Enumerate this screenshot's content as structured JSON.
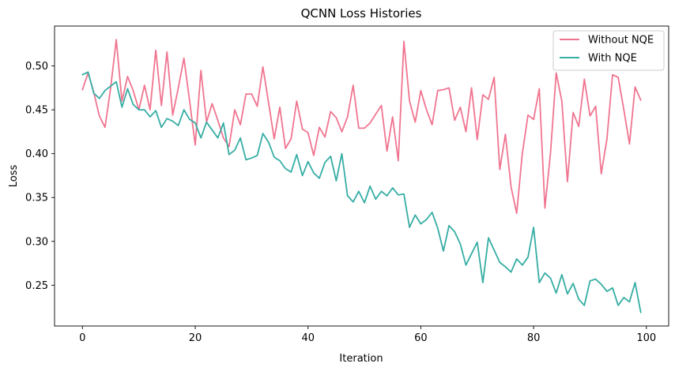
{
  "chart_data": {
    "type": "line",
    "title": "QCNN Loss Histories",
    "xlabel": "Iteration",
    "ylabel": "Loss",
    "xlim": [
      -4.95,
      103.95
    ],
    "ylim": [
      0.2035,
      0.5455
    ],
    "xticks": [
      0,
      20,
      40,
      60,
      80,
      100
    ],
    "yticks": [
      0.25,
      0.3,
      0.35,
      0.4,
      0.45,
      0.5
    ],
    "ytick_labels": [
      "0.25",
      "0.30",
      "0.35",
      "0.40",
      "0.45",
      "0.50"
    ],
    "grid": false,
    "legend_position": "top-right",
    "series": [
      {
        "name": "Without NQE",
        "color": "#f07590",
        "values": [
          0.473,
          0.492,
          0.47,
          0.443,
          0.43,
          0.475,
          0.53,
          0.46,
          0.488,
          0.472,
          0.45,
          0.478,
          0.45,
          0.518,
          0.455,
          0.516,
          0.444,
          0.475,
          0.509,
          0.46,
          0.41,
          0.495,
          0.436,
          0.457,
          0.438,
          0.418,
          0.408,
          0.45,
          0.433,
          0.468,
          0.468,
          0.454,
          0.499,
          0.458,
          0.417,
          0.453,
          0.406,
          0.417,
          0.46,
          0.428,
          0.424,
          0.398,
          0.43,
          0.419,
          0.448,
          0.441,
          0.425,
          0.442,
          0.478,
          0.429,
          0.429,
          0.435,
          0.445,
          0.455,
          0.403,
          0.442,
          0.392,
          0.528,
          0.46,
          0.436,
          0.472,
          0.45,
          0.433,
          0.472,
          0.473,
          0.475,
          0.438,
          0.453,
          0.425,
          0.475,
          0.416,
          0.467,
          0.462,
          0.487,
          0.382,
          0.422,
          0.362,
          0.332,
          0.4,
          0.444,
          0.439,
          0.474,
          0.338,
          0.401,
          0.492,
          0.46,
          0.368,
          0.447,
          0.431,
          0.485,
          0.443,
          0.454,
          0.377,
          0.417,
          0.49,
          0.487,
          0.45,
          0.411,
          0.476,
          0.461
        ]
      },
      {
        "name": "With NQE",
        "color": "#36ada4",
        "values": [
          0.49,
          0.493,
          0.469,
          0.463,
          0.472,
          0.477,
          0.482,
          0.453,
          0.474,
          0.456,
          0.45,
          0.45,
          0.442,
          0.449,
          0.43,
          0.44,
          0.437,
          0.432,
          0.45,
          0.439,
          0.435,
          0.418,
          0.436,
          0.427,
          0.418,
          0.435,
          0.399,
          0.404,
          0.418,
          0.393,
          0.395,
          0.398,
          0.423,
          0.413,
          0.396,
          0.392,
          0.383,
          0.379,
          0.399,
          0.375,
          0.391,
          0.378,
          0.372,
          0.39,
          0.397,
          0.369,
          0.4,
          0.352,
          0.345,
          0.357,
          0.344,
          0.363,
          0.348,
          0.357,
          0.352,
          0.361,
          0.353,
          0.354,
          0.316,
          0.33,
          0.32,
          0.325,
          0.333,
          0.315,
          0.289,
          0.318,
          0.311,
          0.297,
          0.273,
          0.286,
          0.299,
          0.253,
          0.304,
          0.29,
          0.276,
          0.271,
          0.265,
          0.28,
          0.273,
          0.282,
          0.316,
          0.253,
          0.264,
          0.258,
          0.241,
          0.262,
          0.24,
          0.252,
          0.234,
          0.227,
          0.255,
          0.257,
          0.251,
          0.243,
          0.247,
          0.227,
          0.236,
          0.231,
          0.253,
          0.219
        ]
      }
    ]
  }
}
